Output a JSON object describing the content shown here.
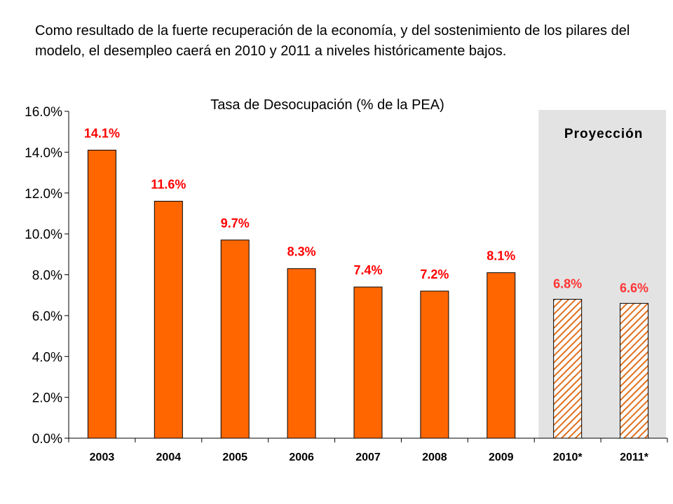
{
  "intro_text": "Como resultado de la fuerte recuperación de la economía, y del sostenimiento de los pilares del modelo, el desempleo caerá en 2010 y 2011 a niveles históricamente bajos.",
  "chart_data": {
    "type": "bar",
    "title": "Tasa de Desocupación (% de la PEA)",
    "categories": [
      "2003",
      "2004",
      "2005",
      "2006",
      "2007",
      "2008",
      "2009",
      "2010*",
      "2011*"
    ],
    "values": [
      14.1,
      11.6,
      9.7,
      8.3,
      7.4,
      7.2,
      8.1,
      6.8,
      6.6
    ],
    "value_labels": [
      "14.1%",
      "11.6%",
      "9.7%",
      "8.3%",
      "7.4%",
      "7.2%",
      "8.1%",
      "6.8%",
      "6.6%"
    ],
    "projected": [
      false,
      false,
      false,
      false,
      false,
      false,
      false,
      true,
      true
    ],
    "ylim": [
      0,
      16
    ],
    "yticks": [
      0,
      2,
      4,
      6,
      8,
      10,
      12,
      14,
      16
    ],
    "ytick_labels": [
      "0.0%",
      "2.0%",
      "4.0%",
      "6.0%",
      "8.0%",
      "10.0%",
      "12.0%",
      "14.0%",
      "16.0%"
    ],
    "projection_label": "Proyección",
    "grid": false,
    "legend": "none",
    "colors": {
      "bar": "#FF6600",
      "bar_outline": "#000000",
      "label_actual": "#FF0000",
      "label_projected": "#FF3333",
      "projection_bg": "#E3E3E3"
    }
  }
}
